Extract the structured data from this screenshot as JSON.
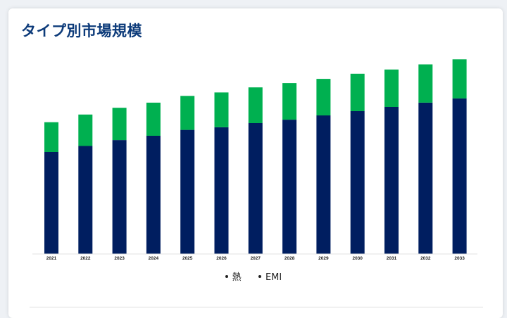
{
  "title": "タイプ別市場規模",
  "colors": {
    "thermal": "#001e60",
    "emi": "#00b050",
    "title": "#0d3b7a"
  },
  "chart_data": {
    "type": "bar",
    "stacked": true,
    "title": "タイプ別市場規模",
    "categories": [
      "2021",
      "2022",
      "2023",
      "2024",
      "2025",
      "2026",
      "2027",
      "2028",
      "2029",
      "2030",
      "2031",
      "2032",
      "2033"
    ],
    "series": [
      {
        "name": "熱",
        "color": "#001e60",
        "values": [
          120,
          127,
          134,
          139,
          146,
          149,
          154,
          158,
          163,
          168,
          173,
          178,
          183
        ]
      },
      {
        "name": "EMI",
        "color": "#00b050",
        "values": [
          35,
          37,
          38,
          39,
          40,
          41,
          42,
          43,
          43,
          44,
          44,
          45,
          46
        ]
      }
    ],
    "ylim": [
      0,
      240
    ],
    "grid": false,
    "legend": "bottom",
    "xlabel": "",
    "ylabel": ""
  }
}
